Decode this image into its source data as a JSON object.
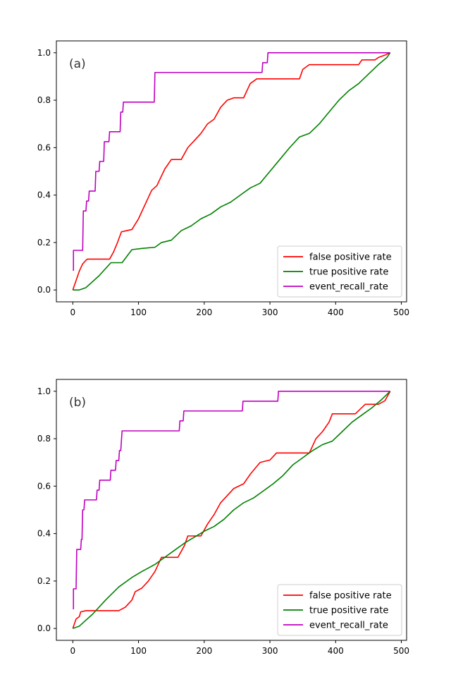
{
  "chart_data": [
    {
      "type": "line",
      "panel_label": "(a)",
      "xlim": [
        -25,
        508
      ],
      "ylim": [
        -0.05,
        1.05
      ],
      "xticks": [
        0,
        100,
        200,
        300,
        400,
        500
      ],
      "yticks": [
        0.0,
        0.2,
        0.4,
        0.6,
        0.8,
        1.0
      ],
      "xtick_labels": [
        "0",
        "100",
        "200",
        "300",
        "400",
        "500"
      ],
      "ytick_labels": [
        "0.0",
        "0.2",
        "0.4",
        "0.6",
        "0.8",
        "1.0"
      ],
      "legend_position": "lower-right",
      "grid": false,
      "series": [
        {
          "name": "false positive rate",
          "color": "#ff0000",
          "points": [
            [
              0,
              0
            ],
            [
              5,
              0.04
            ],
            [
              10,
              0.08
            ],
            [
              15,
              0.11
            ],
            [
              20,
              0.125
            ],
            [
              22,
              0.13
            ],
            [
              56,
              0.13
            ],
            [
              62,
              0.16
            ],
            [
              68,
              0.2
            ],
            [
              74,
              0.245
            ],
            [
              82,
              0.25
            ],
            [
              90,
              0.255
            ],
            [
              100,
              0.3
            ],
            [
              110,
              0.36
            ],
            [
              120,
              0.42
            ],
            [
              128,
              0.44
            ],
            [
              140,
              0.51
            ],
            [
              150,
              0.55
            ],
            [
              165,
              0.55
            ],
            [
              175,
              0.6
            ],
            [
              185,
              0.63
            ],
            [
              195,
              0.66
            ],
            [
              205,
              0.7
            ],
            [
              215,
              0.72
            ],
            [
              225,
              0.77
            ],
            [
              235,
              0.8
            ],
            [
              245,
              0.81
            ],
            [
              260,
              0.81
            ],
            [
              270,
              0.87
            ],
            [
              280,
              0.89
            ],
            [
              290,
              0.89
            ],
            [
              300,
              0.89
            ],
            [
              345,
              0.89
            ],
            [
              350,
              0.93
            ],
            [
              360,
              0.95
            ],
            [
              380,
              0.95
            ],
            [
              405,
              0.95
            ],
            [
              435,
              0.95
            ],
            [
              440,
              0.97
            ],
            [
              460,
              0.97
            ],
            [
              465,
              0.98
            ],
            [
              475,
              0.99
            ],
            [
              483,
              1.0
            ]
          ]
        },
        {
          "name": "true positive rate",
          "color": "#008000",
          "points": [
            [
              0,
              0
            ],
            [
              10,
              0
            ],
            [
              20,
              0.01
            ],
            [
              40,
              0.06
            ],
            [
              58,
              0.115
            ],
            [
              75,
              0.115
            ],
            [
              90,
              0.17
            ],
            [
              105,
              0.175
            ],
            [
              125,
              0.18
            ],
            [
              135,
              0.2
            ],
            [
              150,
              0.21
            ],
            [
              165,
              0.25
            ],
            [
              180,
              0.27
            ],
            [
              195,
              0.3
            ],
            [
              210,
              0.32
            ],
            [
              225,
              0.35
            ],
            [
              240,
              0.37
            ],
            [
              255,
              0.4
            ],
            [
              270,
              0.43
            ],
            [
              285,
              0.45
            ],
            [
              300,
              0.5
            ],
            [
              315,
              0.55
            ],
            [
              330,
              0.6
            ],
            [
              345,
              0.645
            ],
            [
              360,
              0.66
            ],
            [
              375,
              0.7
            ],
            [
              390,
              0.75
            ],
            [
              405,
              0.8
            ],
            [
              420,
              0.84
            ],
            [
              435,
              0.87
            ],
            [
              450,
              0.91
            ],
            [
              465,
              0.95
            ],
            [
              478,
              0.98
            ],
            [
              483,
              1.0
            ]
          ]
        },
        {
          "name": "event_recall_rate",
          "color": "#bf00bf",
          "points": [
            [
              0,
              0.083
            ],
            [
              1,
              0.083
            ],
            [
              1,
              0.167
            ],
            [
              15,
              0.167
            ],
            [
              16,
              0.333
            ],
            [
              20,
              0.333
            ],
            [
              21,
              0.375
            ],
            [
              24,
              0.375
            ],
            [
              25,
              0.417
            ],
            [
              34,
              0.417
            ],
            [
              35,
              0.5
            ],
            [
              40,
              0.5
            ],
            [
              41,
              0.542
            ],
            [
              47,
              0.542
            ],
            [
              48,
              0.625
            ],
            [
              55,
              0.625
            ],
            [
              56,
              0.667
            ],
            [
              72,
              0.667
            ],
            [
              73,
              0.75
            ],
            [
              76,
              0.75
            ],
            [
              77,
              0.792
            ],
            [
              124,
              0.792
            ],
            [
              125,
              0.917
            ],
            [
              288,
              0.917
            ],
            [
              289,
              0.958
            ],
            [
              296,
              0.958
            ],
            [
              297,
              1.0
            ],
            [
              483,
              1.0
            ]
          ]
        }
      ]
    },
    {
      "type": "line",
      "panel_label": "(b)",
      "xlim": [
        -25,
        508
      ],
      "ylim": [
        -0.05,
        1.05
      ],
      "xticks": [
        0,
        100,
        200,
        300,
        400,
        500
      ],
      "yticks": [
        0.0,
        0.2,
        0.4,
        0.6,
        0.8,
        1.0
      ],
      "xtick_labels": [
        "0",
        "100",
        "200",
        "300",
        "400",
        "500"
      ],
      "ytick_labels": [
        "0.0",
        "0.2",
        "0.4",
        "0.6",
        "0.8",
        "1.0"
      ],
      "legend_position": "lower-right",
      "grid": false,
      "series": [
        {
          "name": "false positive rate",
          "color": "#ff0000",
          "points": [
            [
              0,
              0
            ],
            [
              5,
              0.04
            ],
            [
              10,
              0.05
            ],
            [
              12,
              0.07
            ],
            [
              20,
              0.075
            ],
            [
              60,
              0.075
            ],
            [
              70,
              0.075
            ],
            [
              80,
              0.09
            ],
            [
              90,
              0.12
            ],
            [
              95,
              0.155
            ],
            [
              105,
              0.17
            ],
            [
              115,
              0.2
            ],
            [
              125,
              0.24
            ],
            [
              135,
              0.3
            ],
            [
              160,
              0.3
            ],
            [
              170,
              0.35
            ],
            [
              175,
              0.39
            ],
            [
              195,
              0.39
            ],
            [
              205,
              0.44
            ],
            [
              215,
              0.48
            ],
            [
              225,
              0.53
            ],
            [
              235,
              0.56
            ],
            [
              245,
              0.59
            ],
            [
              260,
              0.61
            ],
            [
              270,
              0.65
            ],
            [
              285,
              0.7
            ],
            [
              300,
              0.71
            ],
            [
              310,
              0.74
            ],
            [
              325,
              0.74
            ],
            [
              350,
              0.74
            ],
            [
              360,
              0.74
            ],
            [
              370,
              0.8
            ],
            [
              380,
              0.83
            ],
            [
              390,
              0.87
            ],
            [
              395,
              0.905
            ],
            [
              430,
              0.905
            ],
            [
              445,
              0.945
            ],
            [
              465,
              0.945
            ],
            [
              475,
              0.96
            ],
            [
              483,
              1.0
            ]
          ]
        },
        {
          "name": "true positive rate",
          "color": "#008000",
          "points": [
            [
              0,
              0
            ],
            [
              10,
              0.01
            ],
            [
              30,
              0.06
            ],
            [
              50,
              0.12
            ],
            [
              70,
              0.175
            ],
            [
              90,
              0.215
            ],
            [
              105,
              0.24
            ],
            [
              115,
              0.255
            ],
            [
              125,
              0.27
            ],
            [
              140,
              0.3
            ],
            [
              155,
              0.33
            ],
            [
              170,
              0.36
            ],
            [
              185,
              0.385
            ],
            [
              200,
              0.41
            ],
            [
              215,
              0.43
            ],
            [
              230,
              0.46
            ],
            [
              245,
              0.5
            ],
            [
              260,
              0.53
            ],
            [
              275,
              0.55
            ],
            [
              290,
              0.58
            ],
            [
              305,
              0.61
            ],
            [
              320,
              0.645
            ],
            [
              335,
              0.69
            ],
            [
              350,
              0.72
            ],
            [
              365,
              0.75
            ],
            [
              380,
              0.775
            ],
            [
              395,
              0.79
            ],
            [
              410,
              0.83
            ],
            [
              425,
              0.87
            ],
            [
              440,
              0.9
            ],
            [
              455,
              0.93
            ],
            [
              470,
              0.965
            ],
            [
              483,
              1.0
            ]
          ]
        },
        {
          "name": "event_recall_rate",
          "color": "#bf00bf",
          "points": [
            [
              0,
              0.083
            ],
            [
              1,
              0.083
            ],
            [
              1,
              0.167
            ],
            [
              5,
              0.167
            ],
            [
              6,
              0.333
            ],
            [
              12,
              0.333
            ],
            [
              13,
              0.375
            ],
            [
              14,
              0.375
            ],
            [
              15,
              0.5
            ],
            [
              17,
              0.5
            ],
            [
              18,
              0.542
            ],
            [
              36,
              0.542
            ],
            [
              37,
              0.583
            ],
            [
              40,
              0.583
            ],
            [
              41,
              0.625
            ],
            [
              57,
              0.625
            ],
            [
              58,
              0.667
            ],
            [
              65,
              0.667
            ],
            [
              66,
              0.708
            ],
            [
              70,
              0.708
            ],
            [
              71,
              0.75
            ],
            [
              73,
              0.75
            ],
            [
              74,
              0.792
            ],
            [
              75,
              0.833
            ],
            [
              162,
              0.833
            ],
            [
              163,
              0.875
            ],
            [
              168,
              0.875
            ],
            [
              169,
              0.917
            ],
            [
              258,
              0.917
            ],
            [
              259,
              0.958
            ],
            [
              312,
              0.958
            ],
            [
              313,
              1.0
            ],
            [
              483,
              1.0
            ]
          ]
        }
      ]
    }
  ]
}
